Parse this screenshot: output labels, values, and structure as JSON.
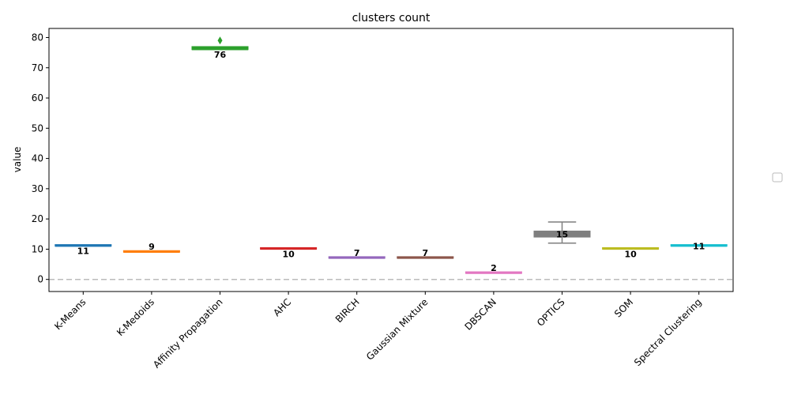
{
  "chart_data": {
    "type": "box",
    "title": "clusters count",
    "xlabel": "",
    "ylabel": "value",
    "ylim": [
      -4,
      83
    ],
    "yticks": [
      0,
      10,
      20,
      30,
      40,
      50,
      60,
      70,
      80
    ],
    "reference_line": 0,
    "legend": "right",
    "categories": [
      "K-Means",
      "K-Medoids",
      "Affinity Propagation",
      "AHC",
      "BIRCH",
      "Gaussian Mixture",
      "DBSCAN",
      "OPTICS",
      "SOM",
      "Spectral Clustering"
    ],
    "boxes": [
      {
        "name": "K-Means",
        "min": 11,
        "q1": 11,
        "median": 11,
        "q3": 11,
        "max": 11,
        "outliers": [],
        "color": "#1f77b4",
        "label": "11",
        "label_pos": "below"
      },
      {
        "name": "K-Medoids",
        "min": 9,
        "q1": 9,
        "median": 9,
        "q3": 9,
        "max": 9,
        "outliers": [],
        "color": "#ff7f0e",
        "label": "9",
        "label_pos": "above"
      },
      {
        "name": "Affinity Propagation",
        "min": 76,
        "q1": 76,
        "median": 76,
        "q3": 77,
        "max": 77,
        "outliers": [
          79
        ],
        "color": "#2ca02c",
        "label": "76",
        "label_pos": "below"
      },
      {
        "name": "AHC",
        "min": 10,
        "q1": 10,
        "median": 10,
        "q3": 10,
        "max": 10,
        "outliers": [],
        "color": "#d62728",
        "label": "10",
        "label_pos": "below"
      },
      {
        "name": "BIRCH",
        "min": 7,
        "q1": 7,
        "median": 7,
        "q3": 7,
        "max": 7,
        "outliers": [],
        "color": "#9467bd",
        "label": "7",
        "label_pos": "above"
      },
      {
        "name": "Gaussian Mixture",
        "min": 7,
        "q1": 7,
        "median": 7,
        "q3": 7,
        "max": 7,
        "outliers": [],
        "color": "#8c564b",
        "label": "7",
        "label_pos": "above"
      },
      {
        "name": "DBSCAN",
        "min": 2,
        "q1": 2,
        "median": 2,
        "q3": 2,
        "max": 2,
        "outliers": [],
        "color": "#e377c2",
        "label": "2",
        "label_pos": "above"
      },
      {
        "name": "OPTICS",
        "min": 12,
        "q1": 14,
        "median": 15,
        "q3": 16,
        "max": 19,
        "outliers": [],
        "color": "#7f7f7f",
        "label": "15",
        "label_pos": "center"
      },
      {
        "name": "SOM",
        "min": 10,
        "q1": 10,
        "median": 10,
        "q3": 10,
        "max": 10,
        "outliers": [],
        "color": "#bcbd22",
        "label": "10",
        "label_pos": "below"
      },
      {
        "name": "Spectral Clustering",
        "min": 11,
        "q1": 11,
        "median": 11,
        "q3": 11,
        "max": 11,
        "outliers": [],
        "color": "#17becf",
        "label": "11",
        "label_pos": "center"
      }
    ]
  }
}
